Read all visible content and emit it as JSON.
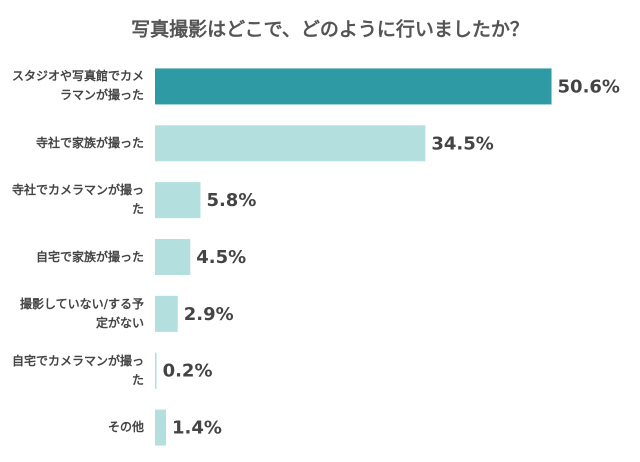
{
  "chart_data": {
    "type": "bar",
    "orientation": "horizontal",
    "title": "写真撮影はどこで、どのように行いましたか？",
    "categories": [
      "スタジオや写真館でカメラマンが撮った",
      "寺社で家族が撮った",
      "寺社でカメラマンが撮った",
      "自宅で家族が撮った",
      "撮影していない/する予定がない",
      "自宅でカメラマンが撮った",
      "その他"
    ],
    "values": [
      50.6,
      34.5,
      5.8,
      4.5,
      2.9,
      0.2,
      1.4
    ],
    "value_labels": [
      "50.6%",
      "34.5%",
      "5.8%",
      "4.5%",
      "2.9%",
      "0.2%",
      "1.4%"
    ],
    "colors": [
      "#2e9aa4",
      "#b3e0de",
      "#b3e0de",
      "#b3e0de",
      "#b3e0de",
      "#b3e0de",
      "#b3e0de"
    ],
    "xlim": [
      0,
      55
    ]
  }
}
